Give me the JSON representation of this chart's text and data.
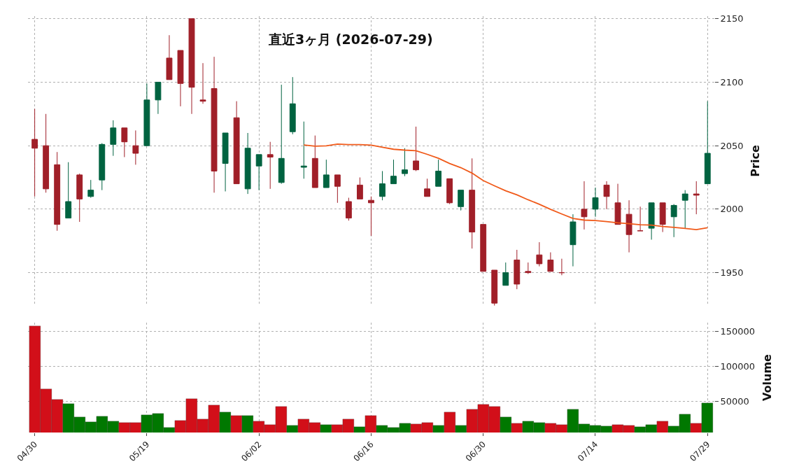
{
  "chart_data": [
    {
      "type": "candlestick",
      "title": "直近3ヶ月 (2026-07-29)",
      "ylabel": "Price",
      "categories": [
        null,
        null,
        null,
        null,
        null,
        null,
        null,
        null,
        null,
        null,
        null,
        null,
        null,
        null,
        null,
        null,
        null,
        null,
        null,
        null,
        null,
        null,
        null,
        null,
        null,
        null,
        null,
        null,
        null,
        null,
        null,
        null,
        null,
        null,
        null,
        null,
        null,
        null,
        null,
        null,
        null,
        null,
        null,
        null,
        null,
        null,
        null,
        null,
        null,
        null,
        null,
        null,
        null,
        null,
        null,
        null,
        null,
        null,
        null,
        null,
        null
      ],
      "ohlc": [
        [
          2055,
          2079,
          2010,
          2048
        ],
        [
          2050,
          2075,
          2013,
          2016
        ],
        [
          2035,
          2045,
          1983,
          1988
        ],
        [
          1993,
          2037,
          1993,
          2006
        ],
        [
          2027,
          2028,
          1990,
          2008
        ],
        [
          2010,
          2023,
          2009,
          2015
        ],
        [
          2023,
          2052,
          2015,
          2051
        ],
        [
          2051,
          2070,
          2042,
          2064
        ],
        [
          2064,
          2064,
          2041,
          2053
        ],
        [
          2050,
          2062,
          2035,
          2044
        ],
        [
          2050,
          2099,
          2050,
          2086
        ],
        [
          2086,
          2100,
          2075,
          2100
        ],
        [
          2119,
          2137,
          2102,
          2102
        ],
        [
          2125,
          2125,
          2081,
          2099
        ],
        [
          2150,
          2150,
          2075,
          2096
        ],
        [
          2086,
          2115,
          2083,
          2085
        ],
        [
          2095,
          2120,
          2013,
          2030
        ],
        [
          2036,
          2060,
          2014,
          2060
        ],
        [
          2072,
          2085,
          2020,
          2020
        ],
        [
          2016,
          2060,
          2012,
          2048
        ],
        [
          2034,
          2043,
          2015,
          2043
        ],
        [
          2043,
          2053,
          2016,
          2041
        ],
        [
          2021,
          2098,
          2020,
          2040
        ],
        [
          2061,
          2104,
          2059,
          2083
        ],
        [
          2033,
          2069,
          2024,
          2034
        ],
        [
          2040,
          2058,
          2017,
          2017
        ],
        [
          2017,
          2039,
          2017,
          2027
        ],
        [
          2027,
          2027,
          2005,
          2018
        ],
        [
          2006,
          2009,
          1991,
          1993
        ],
        [
          2019,
          2025,
          2008,
          2008
        ],
        [
          2007,
          2010,
          1979,
          2005
        ],
        [
          2010,
          2030,
          2007,
          2020
        ],
        [
          2020,
          2039,
          2020,
          2026
        ],
        [
          2028,
          2048,
          2026,
          2031
        ],
        [
          2038,
          2065,
          2030,
          2031
        ],
        [
          2016,
          2024,
          2010,
          2010
        ],
        [
          2018,
          2039,
          2018,
          2030
        ],
        [
          2024,
          2024,
          2004,
          2005
        ],
        [
          2002,
          2015,
          1999,
          2015
        ],
        [
          2015,
          2040,
          1969,
          1982
        ],
        [
          1988,
          1988,
          1951,
          1951
        ],
        [
          1952,
          1952,
          1924,
          1926
        ],
        [
          1940,
          1958,
          1940,
          1950
        ],
        [
          1960,
          1968,
          1937,
          1941
        ],
        [
          1951,
          1958,
          1949,
          1950
        ],
        [
          1964,
          1974,
          1955,
          1957
        ],
        [
          1960,
          1966,
          1951,
          1951
        ],
        [
          1950,
          1961,
          1948,
          1950
        ],
        [
          1972,
          1996,
          1955,
          1990
        ],
        [
          2000,
          2022,
          1984,
          1994
        ],
        [
          2000,
          2017,
          1994,
          2009
        ],
        [
          2019,
          2022,
          2000,
          2010
        ],
        [
          2005,
          2020,
          1988,
          1988
        ],
        [
          1996,
          2007,
          1966,
          1980
        ],
        [
          1983,
          2002,
          1983,
          1983
        ],
        [
          1985,
          2005,
          1976,
          2005
        ],
        [
          2005,
          2005,
          1982,
          1988
        ],
        [
          1994,
          2004,
          1978,
          2003
        ],
        [
          2007,
          2015,
          1985,
          2012
        ],
        [
          2012,
          2022,
          1996,
          2011
        ],
        [
          2020,
          2085,
          2020,
          2044
        ]
      ],
      "colors": [
        "#a01f28",
        "#a01f28",
        "#a01f28",
        "#006340",
        "#a01f28",
        "#006340",
        "#006340",
        "#006340",
        "#a01f28",
        "#a01f28",
        "#006340",
        "#006340",
        "#a01f28",
        "#a01f28",
        "#a01f28",
        "#a01f28",
        "#a01f28",
        "#006340",
        "#a01f28",
        "#006340",
        "#006340",
        "#a01f28",
        "#006340",
        "#006340",
        "#006340",
        "#a01f28",
        "#006340",
        "#a01f28",
        "#a01f28",
        "#a01f28",
        "#a01f28",
        "#006340",
        "#006340",
        "#006340",
        "#a01f28",
        "#a01f28",
        "#006340",
        "#a01f28",
        "#006340",
        "#a01f28",
        "#a01f28",
        "#a01f28",
        "#006340",
        "#a01f28",
        "#a01f28",
        "#a01f28",
        "#a01f28",
        "#a01f28",
        "#006340",
        "#a01f28",
        "#006340",
        "#a01f28",
        "#a01f28",
        "#a01f28",
        "#a01f28",
        "#006340",
        "#a01f28",
        "#006340",
        "#006340",
        "#a01f28",
        "#006340"
      ],
      "series": [
        {
          "type": "line",
          "color": "#f05a1a",
          "values": [
            null,
            null,
            null,
            null,
            null,
            null,
            null,
            null,
            null,
            null,
            null,
            null,
            null,
            null,
            null,
            null,
            null,
            null,
            null,
            null,
            null,
            null,
            null,
            null,
            2050.6,
            2049.6,
            2049.9,
            2051.3,
            2050.8,
            2050.8,
            2050.4,
            2048.8,
            2047.2,
            2046.5,
            2046.0,
            2043.2,
            2040.1,
            2036.0,
            2032.7,
            2028.4,
            2022.5,
            2018.4,
            2014.5,
            2011.3,
            2007.4,
            2003.9,
            1999.9,
            1996.2,
            1992.7,
            1991.4,
            1991.1,
            1990.2,
            1989.3,
            1988.6,
            1987.7,
            1987.5,
            1986.4,
            1985.7,
            1984.8,
            1983.9,
            1985.4
          ]
        }
      ],
      "ylim": [
        1924,
        2152
      ],
      "yticks": [
        1950,
        2000,
        2050,
        2100,
        2150
      ],
      "grid": true,
      "tick_labels": "y"
    },
    {
      "type": "bar",
      "ylabel": "Volume",
      "categories": [
        "04/30",
        null,
        null,
        null,
        null,
        null,
        null,
        null,
        null,
        null,
        "05/19",
        null,
        null,
        null,
        null,
        null,
        null,
        null,
        null,
        null,
        "06/02",
        null,
        null,
        null,
        null,
        null,
        null,
        null,
        null,
        null,
        "06/16",
        null,
        null,
        null,
        null,
        null,
        null,
        null,
        null,
        null,
        "06/30",
        null,
        null,
        null,
        null,
        null,
        null,
        null,
        null,
        null,
        "07/14",
        null,
        null,
        null,
        null,
        null,
        null,
        null,
        null,
        null,
        "07/29"
      ],
      "values": [
        158000,
        67000,
        52000,
        46000,
        27000,
        20000,
        28000,
        21000,
        19000,
        19000,
        30000,
        32000,
        12000,
        22000,
        53000,
        24000,
        44000,
        34000,
        29000,
        29000,
        21000,
        16000,
        42000,
        15000,
        24000,
        19000,
        16000,
        16000,
        24000,
        13000,
        29000,
        15000,
        12000,
        18000,
        17000,
        19000,
        15000,
        34000,
        15000,
        38000,
        45000,
        42000,
        27000,
        18000,
        21000,
        19000,
        18000,
        16000,
        38000,
        17000,
        15000,
        14000,
        16000,
        15000,
        13000,
        16000,
        21000,
        14000,
        31000,
        18000,
        47000
      ],
      "colors": [
        "#d20f19",
        "#d20f19",
        "#d20f19",
        "#007800",
        "#007800",
        "#007800",
        "#007800",
        "#007800",
        "#d20f19",
        "#d20f19",
        "#007800",
        "#007800",
        "#007800",
        "#d20f19",
        "#d20f19",
        "#d20f19",
        "#d20f19",
        "#007800",
        "#d20f19",
        "#007800",
        "#d20f19",
        "#d20f19",
        "#d20f19",
        "#007800",
        "#d20f19",
        "#d20f19",
        "#007800",
        "#d20f19",
        "#d20f19",
        "#007800",
        "#d20f19",
        "#007800",
        "#007800",
        "#007800",
        "#d20f19",
        "#d20f19",
        "#007800",
        "#d20f19",
        "#007800",
        "#d20f19",
        "#d20f19",
        "#d20f19",
        "#007800",
        "#d20f19",
        "#007800",
        "#007800",
        "#d20f19",
        "#d20f19",
        "#007800",
        "#007800",
        "#007800",
        "#007800",
        "#d20f19",
        "#d20f19",
        "#007800",
        "#007800",
        "#d20f19",
        "#007800",
        "#007800",
        "#d20f19",
        "#007800"
      ],
      "ylim": [
        5000,
        163000
      ],
      "yticks": [
        50000,
        100000,
        150000
      ],
      "grid": true
    }
  ]
}
